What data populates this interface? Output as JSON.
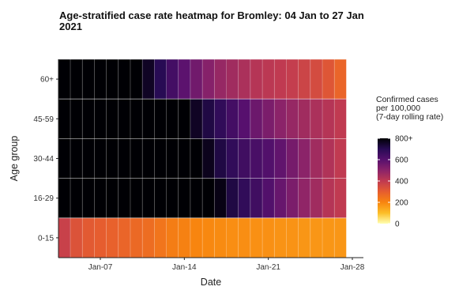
{
  "chart_data": {
    "type": "heatmap",
    "title": "Age-stratified case rate heatmap for Bromley: 04 Jan to 27 Jan 2021",
    "title_lines": [
      "Age-stratified case rate heatmap for Bromley: 04 Jan to 27 Jan",
      "2021"
    ],
    "xlabel": "Date",
    "ylabel": "Age group",
    "x_start_day": 4,
    "x_end_day": 27,
    "x_ticks": [
      {
        "day": 7,
        "label": "Jan-07"
      },
      {
        "day": 14,
        "label": "Jan-14"
      },
      {
        "day": 21,
        "label": "Jan-21"
      },
      {
        "day": 28,
        "label": "Jan-28"
      }
    ],
    "age_groups": [
      "60+",
      "45-59",
      "30-44",
      "16-29",
      "0-15"
    ],
    "grid": true,
    "legend": {
      "title_lines": [
        "Confirmed cases",
        "per 100,000",
        "(7-day rolling rate)"
      ],
      "placement": "right",
      "range": [
        0,
        800
      ],
      "ticks": [
        {
          "value": 800,
          "label": "800+"
        },
        {
          "value": 600,
          "label": "600"
        },
        {
          "value": 400,
          "label": "400"
        },
        {
          "value": 200,
          "label": "200"
        },
        {
          "value": 0,
          "label": "0"
        }
      ],
      "colors": [
        "#ffffb2",
        "#fcbe27",
        "#f8850f",
        "#e65d2f",
        "#c03a51",
        "#8b2369",
        "#57106e",
        "#280b54",
        "#000004"
      ]
    },
    "rows": [
      {
        "name": "60+",
        "values": [
          800,
          800,
          800,
          800,
          800,
          800,
          800,
          760,
          700,
          640,
          590,
          550,
          510,
          480,
          460,
          440,
          420,
          410,
          400,
          390,
          370,
          350,
          320,
          280
        ]
      },
      {
        "name": "45-59",
        "values": [
          800,
          800,
          800,
          800,
          800,
          800,
          800,
          800,
          800,
          800,
          800,
          760,
          720,
          680,
          640,
          600,
          560,
          530,
          500,
          480,
          460,
          440,
          420,
          400
        ]
      },
      {
        "name": "30-44",
        "values": [
          800,
          800,
          800,
          800,
          800,
          800,
          800,
          800,
          800,
          800,
          800,
          800,
          770,
          720,
          680,
          650,
          630,
          610,
          580,
          540,
          500,
          460,
          430,
          400
        ]
      },
      {
        "name": "16-29",
        "values": [
          800,
          800,
          800,
          800,
          800,
          800,
          800,
          800,
          800,
          800,
          800,
          800,
          800,
          780,
          720,
          680,
          650,
          610,
          570,
          530,
          490,
          460,
          420,
          400
        ]
      },
      {
        "name": "0-15",
        "values": [
          380,
          330,
          310,
          300,
          290,
          280,
          270,
          260,
          240,
          220,
          210,
          200,
          195,
          190,
          185,
          185,
          180,
          180,
          175,
          175,
          170,
          170,
          170,
          170
        ]
      }
    ]
  }
}
